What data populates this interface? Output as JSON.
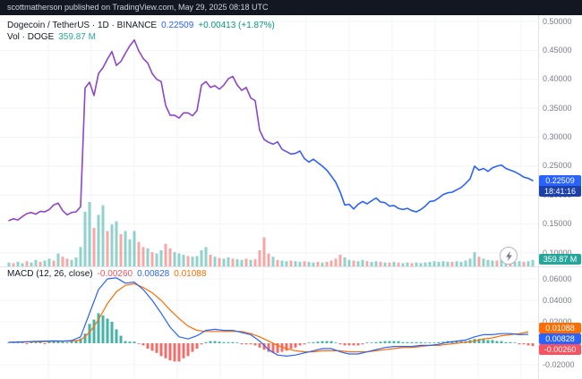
{
  "publish_bar": {
    "text": "scottmatherson published on TradingView.com, May 29, 2025 08:18 UTC"
  },
  "legend": {
    "symbol_line": "Dogecoin / TetherUS · 1D · BINANCE",
    "price": "0.22509",
    "change": "+0.00413 (+1.87%)",
    "vol_label": "Vol · DOGE",
    "vol_value": "359.87 M"
  },
  "macd_legend": {
    "title": "MACD (12, 26, close)",
    "hist": "-0.00260",
    "macd": "0.00828",
    "signal": "0.01088"
  },
  "badges": {
    "price": "0.22509",
    "countdown": "18:41:16",
    "volume": "359.87 M",
    "signal": "0.01088",
    "macd": "0.00828",
    "hist": "-0.00260"
  },
  "axis": {
    "price_labels": [
      "0.50000",
      "0.45000",
      "0.40000",
      "0.35000",
      "0.30000",
      "0.25000",
      "0.20000",
      "0.15000",
      "0.10000"
    ],
    "macd_labels": [
      "0.06000",
      "0.04000",
      "0.02000",
      "-0.02000"
    ]
  },
  "icons": {
    "boost": "lightning-icon"
  },
  "colors": {
    "bar-bg": "#131722",
    "bar-text": "#d1d4dc",
    "legend-text": "#131722",
    "axis-text": "#787b86",
    "grid": "#f0f3fa",
    "pane-border": "#e0e3eb",
    "price-line-start": "#8f45c6",
    "price-line-end": "#2962ff",
    "vol-up": "#26a69a",
    "vol-down": "#ef5350",
    "hist-pos": "#26a69a",
    "hist-neg": "#f0544f",
    "macd-line": "#2962ff",
    "signal-line": "#ff6d00",
    "up-text": "#089981",
    "price-badge": "#2962ff",
    "countdown-bg": "#1c3faa",
    "vol-badge": "#26a69a",
    "signal-badge": "#ff6d00",
    "macd-badge": "#2962ff",
    "hist-badge": "#f7525f"
  },
  "chart_data": {
    "type": "line",
    "title": "Dogecoin / TetherUS · 1D · BINANCE",
    "interval": "1D",
    "last_price": 0.22509,
    "change": 0.00413,
    "change_pct": 1.87,
    "last_volume": "359.87 M",
    "price": {
      "ylim": [
        0.1,
        0.5
      ],
      "x_start": 10,
      "x_step": 5,
      "values": [
        0.156,
        0.159,
        0.157,
        0.163,
        0.168,
        0.17,
        0.167,
        0.172,
        0.171,
        0.175,
        0.183,
        0.186,
        0.173,
        0.166,
        0.17,
        0.171,
        0.18,
        0.385,
        0.395,
        0.372,
        0.41,
        0.42,
        0.435,
        0.448,
        0.424,
        0.431,
        0.445,
        0.458,
        0.468,
        0.449,
        0.436,
        0.428,
        0.41,
        0.4,
        0.396,
        0.355,
        0.338,
        0.338,
        0.333,
        0.342,
        0.342,
        0.337,
        0.346,
        0.39,
        0.396,
        0.386,
        0.389,
        0.383,
        0.39,
        0.401,
        0.405,
        0.39,
        0.381,
        0.386,
        0.368,
        0.363,
        0.312,
        0.296,
        0.291,
        0.288,
        0.292,
        0.279,
        0.275,
        0.271,
        0.272,
        0.276,
        0.263,
        0.257,
        0.262,
        0.256,
        0.25,
        0.243,
        0.233,
        0.222,
        0.205,
        0.183,
        0.184,
        0.176,
        0.184,
        0.189,
        0.185,
        0.19,
        0.195,
        0.188,
        0.187,
        0.181,
        0.182,
        0.177,
        0.175,
        0.177,
        0.173,
        0.171,
        0.175,
        0.181,
        0.189,
        0.19,
        0.195,
        0.201,
        0.204,
        0.205,
        0.209,
        0.213,
        0.22,
        0.228,
        0.25,
        0.243,
        0.246,
        0.241,
        0.247,
        0.25,
        0.252,
        0.246,
        0.243,
        0.24,
        0.236,
        0.231,
        0.229,
        0.225
      ]
    },
    "volume": {
      "x_start": 10,
      "x_step": 5,
      "note": "signed fractions of max bar height; positive=up teal, negative=down red",
      "values": [
        0.06,
        -0.05,
        0.07,
        0.05,
        -0.08,
        0.06,
        0.1,
        -0.07,
        0.09,
        0.12,
        -0.09,
        0.2,
        -0.15,
        -0.12,
        0.1,
        0.14,
        0.3,
        0.85,
        1.0,
        -0.6,
        0.8,
        0.95,
        -0.55,
        0.65,
        0.7,
        -0.5,
        0.55,
        0.42,
        0.55,
        -0.38,
        -0.3,
        0.28,
        -0.22,
        0.2,
        0.25,
        -0.35,
        -0.28,
        0.22,
        0.2,
        0.18,
        -0.16,
        0.15,
        0.16,
        0.25,
        0.3,
        -0.18,
        0.15,
        -0.13,
        0.12,
        0.14,
        -0.12,
        0.11,
        0.1,
        -0.12,
        0.1,
        -0.11,
        -0.25,
        -0.45,
        -0.2,
        0.15,
        -0.1,
        0.09,
        0.08,
        -0.09,
        0.08,
        0.07,
        -0.08,
        0.07,
        0.06,
        -0.07,
        0.06,
        -0.07,
        -0.09,
        -0.12,
        -0.18,
        0.14,
        0.1,
        -0.09,
        0.08,
        0.1,
        -0.08,
        0.07,
        0.08,
        -0.07,
        0.06,
        -0.06,
        0.07,
        -0.06,
        0.05,
        0.06,
        -0.05,
        0.06,
        0.05,
        0.06,
        0.07,
        0.08,
        0.07,
        0.08,
        0.07,
        -0.07,
        0.08,
        0.07,
        0.09,
        0.12,
        0.22,
        -0.15,
        0.12,
        0.1,
        0.09,
        -0.09,
        0.1,
        0.08,
        -0.08,
        0.07,
        0.08,
        -0.07,
        0.08,
        0.1
      ]
    },
    "macd": {
      "ylim": [
        -0.02,
        0.06
      ],
      "x_start": 10,
      "x_step_line": 10,
      "x_step_hist": 5,
      "line": [
        0.001,
        0.0012,
        0.0015,
        0.0018,
        0.002,
        0.0022,
        0.002,
        0.0025,
        0.006,
        0.028,
        0.05,
        0.06,
        0.061,
        0.056,
        0.057,
        0.05,
        0.04,
        0.028,
        0.015,
        0.006,
        0.004,
        0.007,
        0.012,
        0.013,
        0.012,
        0.012,
        0.01,
        0.008,
        0.002,
        -0.006,
        -0.011,
        -0.012,
        -0.011,
        -0.009,
        -0.007,
        -0.005,
        -0.005,
        -0.008,
        -0.01,
        -0.01,
        -0.008,
        -0.006,
        -0.004,
        -0.003,
        -0.003,
        -0.003,
        -0.002,
        -0.002,
        -0.001,
        0.001,
        0.002,
        0.003,
        0.006,
        0.008,
        0.008,
        0.009,
        0.009,
        0.008,
        0.0083
      ],
      "signal": [
        0.0008,
        0.001,
        0.0012,
        0.0014,
        0.0016,
        0.0018,
        0.0019,
        0.002,
        0.003,
        0.01,
        0.022,
        0.037,
        0.048,
        0.054,
        0.0555,
        0.052,
        0.047,
        0.04,
        0.031,
        0.023,
        0.016,
        0.012,
        0.011,
        0.011,
        0.011,
        0.011,
        0.011,
        0.009,
        0.006,
        0.002,
        -0.002,
        -0.005,
        -0.007,
        -0.008,
        -0.008,
        -0.007,
        -0.007,
        -0.007,
        -0.008,
        -0.008,
        -0.008,
        -0.007,
        -0.006,
        -0.005,
        -0.004,
        -0.004,
        -0.003,
        -0.002,
        -0.002,
        -0.001,
        0.0,
        0.001,
        0.002,
        0.004,
        0.005,
        0.007,
        0.008,
        0.009,
        0.0105
      ],
      "hist": [
        0.001,
        0.0014,
        0.0018,
        0.0012,
        -0.0008,
        0.0016,
        0.002,
        0.0015,
        -0.0008,
        0.0012,
        0.0018,
        0.0022,
        0.0012,
        0.001,
        0.0016,
        0.0025,
        0.0045,
        0.009,
        0.018,
        0.022,
        0.028,
        0.026,
        0.023,
        0.02,
        0.013,
        0.007,
        0.002,
        0.0015,
        0.0015,
        -0.0002,
        -0.002,
        -0.005,
        -0.007,
        -0.009,
        -0.012,
        -0.014,
        -0.016,
        -0.017,
        -0.017,
        -0.014,
        -0.012,
        -0.008,
        -0.005,
        -0.001,
        0.001,
        0.002,
        0.002,
        0.0015,
        0.001,
        0.001,
        0.001,
        0.0005,
        -0.001,
        -0.001,
        -0.001,
        -0.002,
        -0.004,
        -0.006,
        -0.008,
        -0.009,
        -0.009,
        -0.008,
        -0.007,
        -0.005,
        -0.004,
        -0.002,
        -0.001,
        0.0005,
        0.001,
        0.0015,
        0.002,
        0.002,
        0.002,
        0.0,
        -0.001,
        -0.002,
        -0.002,
        -0.002,
        -0.002,
        -0.001,
        0.0,
        0.0005,
        0.001,
        0.0015,
        0.002,
        0.002,
        0.002,
        0.002,
        0.001,
        0.001,
        0.001,
        0.001,
        0.001,
        0.0,
        0.0,
        0.0005,
        0.001,
        0.0015,
        0.002,
        0.002,
        0.002,
        0.002,
        0.002,
        0.003,
        0.004,
        0.004,
        0.004,
        0.003,
        0.003,
        0.002,
        0.002,
        0.001,
        0.001,
        0.0005,
        -0.001,
        -0.001,
        -0.002,
        -0.0026
      ]
    }
  }
}
